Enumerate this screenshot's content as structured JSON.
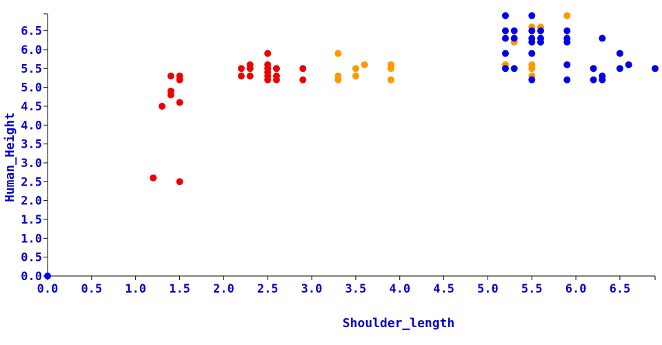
{
  "chart_data": {
    "type": "scatter",
    "title": "",
    "xlabel": "Shoulder_length",
    "ylabel": "Human_Height",
    "xlim": [
      0,
      6.9
    ],
    "ylim": [
      0,
      6.95
    ],
    "x_ticks": [
      0.0,
      0.5,
      1.0,
      1.5,
      2.0,
      2.5,
      3.0,
      3.5,
      4.0,
      4.5,
      5.0,
      5.5,
      6.0,
      6.5
    ],
    "y_ticks": [
      0.0,
      0.5,
      1.0,
      1.5,
      2.0,
      2.5,
      3.0,
      3.5,
      4.0,
      4.5,
      5.0,
      5.5,
      6.0,
      6.5
    ],
    "x_tick_labels": [
      "0.0",
      "0.5",
      "1.0",
      "1.5",
      "2.0",
      "2.5",
      "3.0",
      "3.5",
      "4.0",
      "4.5",
      "5.0",
      "5.5",
      "6.0",
      "6.5"
    ],
    "y_tick_labels": [
      "0.0",
      "0.5",
      "1.0",
      "1.5",
      "2.0",
      "2.5",
      "3.0",
      "3.5",
      "4.0",
      "4.5",
      "5.0",
      "5.5",
      "6.0",
      "6.5"
    ],
    "grid": false,
    "legend": "none",
    "axis_color": "#000000",
    "label_color": "#0000cc",
    "series": [
      {
        "color": "#ee0000",
        "points": [
          [
            1.2,
            2.6
          ],
          [
            1.3,
            4.5
          ],
          [
            1.4,
            4.8
          ],
          [
            1.4,
            4.9
          ],
          [
            1.4,
            5.3
          ],
          [
            1.5,
            5.2
          ],
          [
            1.5,
            5.3
          ],
          [
            1.5,
            4.6
          ],
          [
            1.5,
            2.5
          ],
          [
            2.2,
            5.3
          ],
          [
            2.2,
            5.5
          ],
          [
            2.3,
            5.3
          ],
          [
            2.3,
            5.5
          ],
          [
            2.3,
            5.6
          ],
          [
            2.5,
            5.2
          ],
          [
            2.5,
            5.3
          ],
          [
            2.5,
            5.4
          ],
          [
            2.5,
            5.5
          ],
          [
            2.5,
            5.6
          ],
          [
            2.5,
            5.9
          ],
          [
            2.6,
            5.2
          ],
          [
            2.6,
            5.3
          ],
          [
            2.6,
            5.5
          ],
          [
            2.9,
            5.2
          ],
          [
            2.9,
            5.5
          ]
        ]
      },
      {
        "color": "#ff9900",
        "points": [
          [
            3.3,
            5.2
          ],
          [
            3.3,
            5.3
          ],
          [
            3.3,
            5.9
          ],
          [
            3.5,
            5.3
          ],
          [
            3.5,
            5.5
          ],
          [
            3.6,
            5.6
          ],
          [
            3.9,
            5.2
          ],
          [
            3.9,
            5.5
          ],
          [
            3.9,
            5.6
          ],
          [
            5.2,
            5.6
          ],
          [
            5.3,
            6.2
          ],
          [
            5.5,
            5.3
          ],
          [
            5.5,
            5.5
          ],
          [
            5.5,
            5.6
          ],
          [
            5.5,
            6.6
          ],
          [
            5.6,
            6.6
          ],
          [
            5.9,
            6.9
          ]
        ]
      },
      {
        "color": "#0000ee",
        "points": [
          [
            0.0,
            0.0
          ],
          [
            5.2,
            5.5
          ],
          [
            5.2,
            5.9
          ],
          [
            5.2,
            6.3
          ],
          [
            5.2,
            6.5
          ],
          [
            5.2,
            6.9
          ],
          [
            5.3,
            5.5
          ],
          [
            5.3,
            6.3
          ],
          [
            5.3,
            6.5
          ],
          [
            5.5,
            5.2
          ],
          [
            5.5,
            5.9
          ],
          [
            5.5,
            6.2
          ],
          [
            5.5,
            6.3
          ],
          [
            5.5,
            6.5
          ],
          [
            5.5,
            6.9
          ],
          [
            5.6,
            6.2
          ],
          [
            5.6,
            6.3
          ],
          [
            5.6,
            6.5
          ],
          [
            5.9,
            5.2
          ],
          [
            5.9,
            5.6
          ],
          [
            5.9,
            6.2
          ],
          [
            5.9,
            6.3
          ],
          [
            5.9,
            6.5
          ],
          [
            6.2,
            5.2
          ],
          [
            6.2,
            5.5
          ],
          [
            6.3,
            5.2
          ],
          [
            6.3,
            5.3
          ],
          [
            6.3,
            6.3
          ],
          [
            6.5,
            5.5
          ],
          [
            6.5,
            5.9
          ],
          [
            6.6,
            5.6
          ],
          [
            6.9,
            5.5
          ]
        ]
      }
    ]
  }
}
